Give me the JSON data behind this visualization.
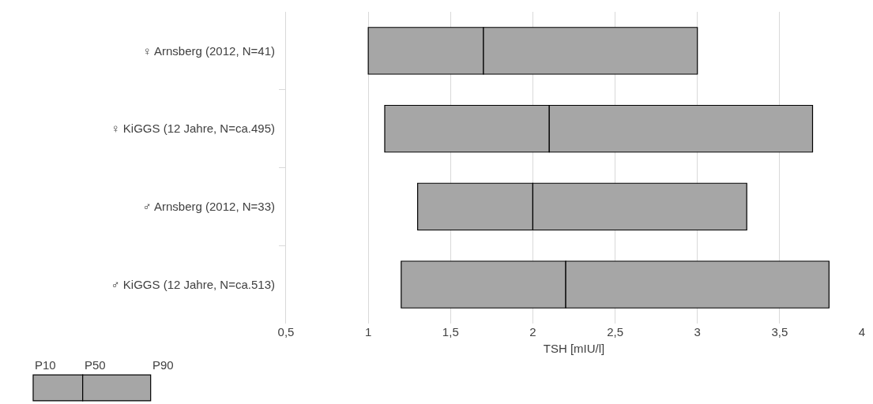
{
  "chart_data": {
    "type": "bar",
    "orientation": "horizontal",
    "categories": [
      "♀ Arnsberg (2012, N=41)",
      "♀ KiGGS (12 Jahre, N=ca.495)",
      "♂ Arnsberg (2012, N=33)",
      "♂ KiGGS (12 Jahre, N=ca.513)"
    ],
    "series": [
      {
        "color": "#a6a6a6",
        "base": [
          1.0,
          1.1,
          1.3,
          1.2
        ],
        "values": [
          0.7,
          1.0,
          0.7,
          1.0
        ]
      },
      {
        "color": "#a6a6a6",
        "base": [
          1.7,
          2.1,
          2.0,
          2.2
        ],
        "values": [
          1.3,
          1.6,
          1.3,
          1.6
        ]
      }
    ],
    "xlabel": "TSH [mIU/l]",
    "xlim": [
      0.5,
      4
    ],
    "xticks": [
      {
        "value": 0.5,
        "label": "0,5"
      },
      1,
      {
        "value": 1.5,
        "label": "1,5"
      },
      2,
      {
        "value": 2.5,
        "label": "2,5"
      },
      3,
      {
        "value": 3.5,
        "label": "3,5"
      },
      4
    ],
    "grid": "x",
    "annotations": [
      "P10",
      "P50",
      "P90"
    ]
  }
}
